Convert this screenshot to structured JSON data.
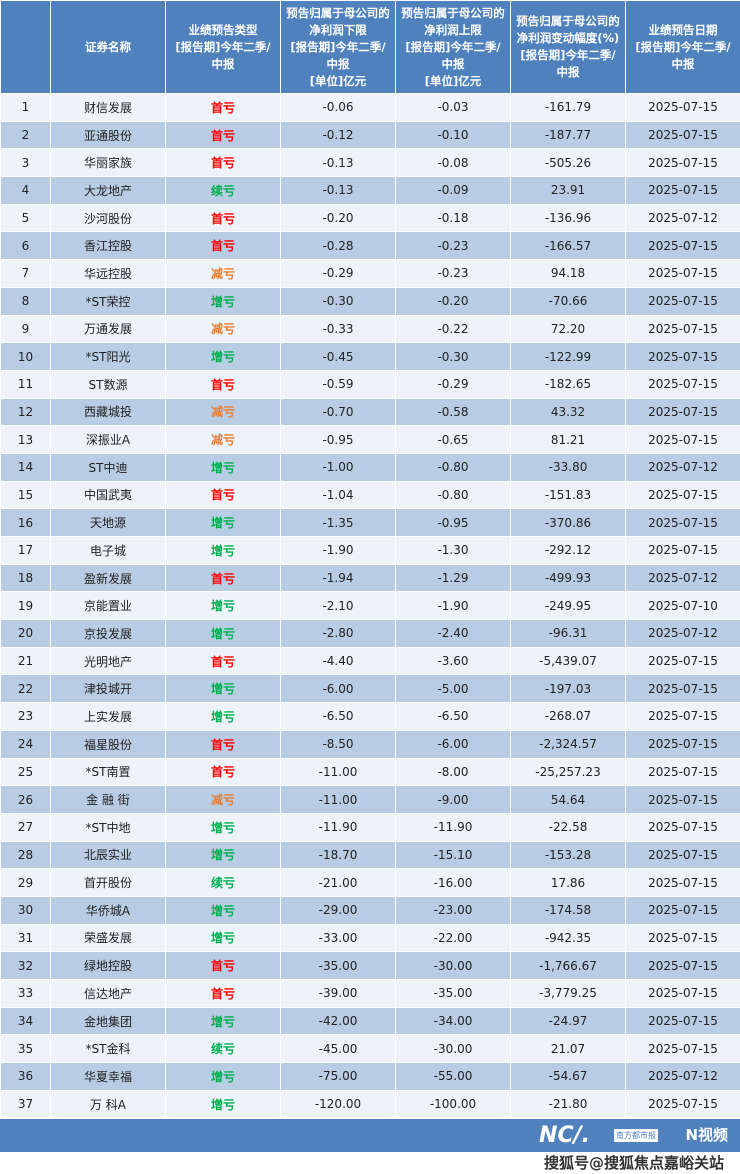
{
  "columns": [
    "",
    "证券名称",
    "业绩预告类型\n[报告期]今年二季/\n中报",
    "预告归属于母公司的\n净利润下限\n[报告期]今年二季/\n中报\n[单位]亿元",
    "预告归属于母公司的\n净利润上限\n[报告期]今年二季/\n中报\n[单位]亿元",
    "预告归属于母公司的\n净利润变动幅度(%)\n[报告期]今年二季/\n中报",
    "业绩预告日期\n[报告期]今年二季/\n中报"
  ],
  "type_colors": {
    "首亏": "#ff0000",
    "续亏": "#00b050",
    "增亏": "#00b050",
    "减亏": "#ed7d31"
  },
  "rows": [
    [
      "1",
      "财信发展",
      "首亏",
      "-0.06",
      "-0.03",
      "-161.79",
      "2025-07-15"
    ],
    [
      "2",
      "亚通股份",
      "首亏",
      "-0.12",
      "-0.10",
      "-187.77",
      "2025-07-15"
    ],
    [
      "3",
      "华丽家族",
      "首亏",
      "-0.13",
      "-0.08",
      "-505.26",
      "2025-07-15"
    ],
    [
      "4",
      "大龙地产",
      "续亏",
      "-0.13",
      "-0.09",
      "23.91",
      "2025-07-15"
    ],
    [
      "5",
      "沙河股份",
      "首亏",
      "-0.20",
      "-0.18",
      "-136.96",
      "2025-07-12"
    ],
    [
      "6",
      "香江控股",
      "首亏",
      "-0.28",
      "-0.23",
      "-166.57",
      "2025-07-15"
    ],
    [
      "7",
      "华远控股",
      "减亏",
      "-0.29",
      "-0.23",
      "94.18",
      "2025-07-15"
    ],
    [
      "8",
      "*ST荣控",
      "增亏",
      "-0.30",
      "-0.20",
      "-70.66",
      "2025-07-15"
    ],
    [
      "9",
      "万通发展",
      "减亏",
      "-0.33",
      "-0.22",
      "72.20",
      "2025-07-15"
    ],
    [
      "10",
      "*ST阳光",
      "增亏",
      "-0.45",
      "-0.30",
      "-122.99",
      "2025-07-15"
    ],
    [
      "11",
      "ST数源",
      "首亏",
      "-0.59",
      "-0.29",
      "-182.65",
      "2025-07-15"
    ],
    [
      "12",
      "西藏城投",
      "减亏",
      "-0.70",
      "-0.58",
      "43.32",
      "2025-07-15"
    ],
    [
      "13",
      "深振业A",
      "减亏",
      "-0.95",
      "-0.65",
      "81.21",
      "2025-07-15"
    ],
    [
      "14",
      "ST中迪",
      "增亏",
      "-1.00",
      "-0.80",
      "-33.80",
      "2025-07-12"
    ],
    [
      "15",
      "中国武夷",
      "首亏",
      "-1.04",
      "-0.80",
      "-151.83",
      "2025-07-15"
    ],
    [
      "16",
      "天地源",
      "增亏",
      "-1.35",
      "-0.95",
      "-370.86",
      "2025-07-15"
    ],
    [
      "17",
      "电子城",
      "增亏",
      "-1.90",
      "-1.30",
      "-292.12",
      "2025-07-15"
    ],
    [
      "18",
      "盈新发展",
      "首亏",
      "-1.94",
      "-1.29",
      "-499.93",
      "2025-07-12"
    ],
    [
      "19",
      "京能置业",
      "增亏",
      "-2.10",
      "-1.90",
      "-249.95",
      "2025-07-10"
    ],
    [
      "20",
      "京投发展",
      "增亏",
      "-2.80",
      "-2.40",
      "-96.31",
      "2025-07-12"
    ],
    [
      "21",
      "光明地产",
      "首亏",
      "-4.40",
      "-3.60",
      "-5,439.07",
      "2025-07-15"
    ],
    [
      "22",
      "津投城开",
      "增亏",
      "-6.00",
      "-5.00",
      "-197.03",
      "2025-07-15"
    ],
    [
      "23",
      "上实发展",
      "增亏",
      "-6.50",
      "-6.50",
      "-268.07",
      "2025-07-15"
    ],
    [
      "24",
      "福星股份",
      "首亏",
      "-8.50",
      "-6.00",
      "-2,324.57",
      "2025-07-15"
    ],
    [
      "25",
      "*ST南置",
      "首亏",
      "-11.00",
      "-8.00",
      "-25,257.23",
      "2025-07-15"
    ],
    [
      "26",
      "金 融 街",
      "减亏",
      "-11.00",
      "-9.00",
      "54.64",
      "2025-07-15"
    ],
    [
      "27",
      "*ST中地",
      "增亏",
      "-11.90",
      "-11.90",
      "-22.58",
      "2025-07-15"
    ],
    [
      "28",
      "北辰实业",
      "增亏",
      "-18.70",
      "-15.10",
      "-153.28",
      "2025-07-15"
    ],
    [
      "29",
      "首开股份",
      "续亏",
      "-21.00",
      "-16.00",
      "17.86",
      "2025-07-15"
    ],
    [
      "30",
      "华侨城A",
      "增亏",
      "-29.00",
      "-23.00",
      "-174.58",
      "2025-07-15"
    ],
    [
      "31",
      "荣盛发展",
      "增亏",
      "-33.00",
      "-22.00",
      "-942.35",
      "2025-07-15"
    ],
    [
      "32",
      "绿地控股",
      "首亏",
      "-35.00",
      "-30.00",
      "-1,766.67",
      "2025-07-15"
    ],
    [
      "33",
      "信达地产",
      "首亏",
      "-39.00",
      "-35.00",
      "-3,779.25",
      "2025-07-15"
    ],
    [
      "34",
      "金地集团",
      "增亏",
      "-42.00",
      "-34.00",
      "-24.97",
      "2025-07-15"
    ],
    [
      "35",
      "*ST金科",
      "续亏",
      "-45.00",
      "-30.00",
      "21.07",
      "2025-07-15"
    ],
    [
      "36",
      "华夏幸福",
      "增亏",
      "-75.00",
      "-55.00",
      "-54.67",
      "2025-07-12"
    ],
    [
      "37",
      "万 科A",
      "增亏",
      "-120.00",
      "-100.00",
      "-21.80",
      "2025-07-15"
    ]
  ],
  "footer": {
    "logo1": "NC/.",
    "logo1_sub": "南方都市报",
    "logo2": "N视频",
    "watermark": "搜狐号@搜狐焦点嘉峪关站"
  }
}
